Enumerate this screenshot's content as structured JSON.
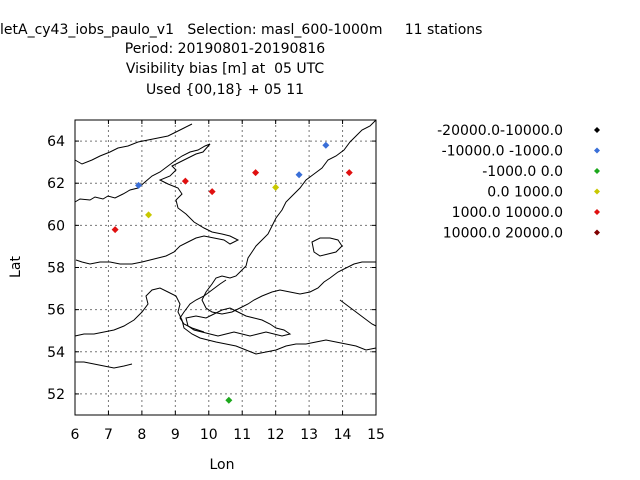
{
  "titles": {
    "line1": "letA_cy43_iobs_paulo_v1   Selection: masl_600-1000m     11 stations",
    "line2": "Period: 20190801-20190816",
    "line3": "Visibility bias [m] at  05 UTC",
    "line4": "Used {00,18} + 05 11"
  },
  "chart_data": {
    "type": "scatter",
    "xlabel": "Lon",
    "ylabel": "Lat",
    "xlim": [
      6,
      15
    ],
    "ylim": [
      51,
      65
    ],
    "xticks": [
      "6",
      "7",
      "8",
      "9",
      "10",
      "11",
      "12",
      "13",
      "14",
      "15"
    ],
    "yticks": [
      "52",
      "54",
      "56",
      "58",
      "60",
      "62",
      "64"
    ],
    "grid": true,
    "legend_position": "right",
    "series": [
      {
        "name": "-20000.0-10000.0",
        "color": "#000000",
        "points": []
      },
      {
        "name": "-10000.0 -1000.0",
        "color": "#3a6fd8",
        "points": [
          [
            7.9,
            61.9
          ],
          [
            12.7,
            62.4
          ],
          [
            13.5,
            63.8
          ]
        ]
      },
      {
        "name": "-1000.0 0.0",
        "color": "#1ca81c",
        "points": [
          [
            10.6,
            51.7
          ]
        ]
      },
      {
        "name": "0.0 1000.0",
        "color": "#c8c800",
        "points": [
          [
            8.2,
            60.5
          ],
          [
            12.0,
            61.8
          ]
        ]
      },
      {
        "name": "1000.0 10000.0",
        "color": "#e01010",
        "points": [
          [
            7.2,
            59.8
          ],
          [
            9.3,
            62.1
          ],
          [
            10.1,
            61.6
          ],
          [
            11.4,
            62.5
          ],
          [
            14.2,
            62.5
          ]
        ]
      },
      {
        "name": "10000.0 20000.0",
        "color": "#800000",
        "points": []
      }
    ]
  }
}
